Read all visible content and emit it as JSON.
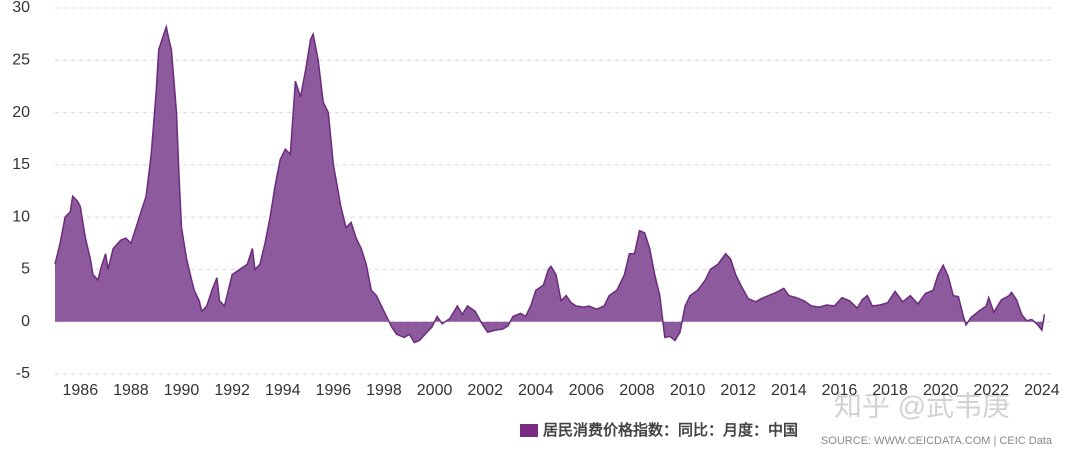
{
  "chart_data": {
    "type": "area",
    "series": [
      {
        "name": "居民消费价格指数：同比：月度：中国",
        "color": "#8e5a9e",
        "line_color": "#6a2c7c",
        "x": [
          1985.0,
          1985.2,
          1985.4,
          1985.6,
          1985.7,
          1985.9,
          1986.0,
          1986.2,
          1986.4,
          1986.5,
          1986.7,
          1986.8,
          1987.0,
          1987.1,
          1987.3,
          1987.6,
          1987.8,
          1988.0,
          1988.2,
          1988.4,
          1988.6,
          1988.8,
          1989.0,
          1989.1,
          1989.3,
          1989.4,
          1989.5,
          1989.6,
          1989.8,
          1989.9,
          1990.0,
          1990.2,
          1990.4,
          1990.5,
          1990.7,
          1990.8,
          1991.0,
          1991.2,
          1991.4,
          1991.5,
          1991.7,
          1991.9,
          1992.0,
          1992.3,
          1992.6,
          1992.8,
          1992.9,
          1993.1,
          1993.3,
          1993.5,
          1993.7,
          1993.9,
          1994.1,
          1994.3,
          1994.5,
          1994.7,
          1994.9,
          1995.1,
          1995.2,
          1995.4,
          1995.6,
          1995.8,
          1996.0,
          1996.3,
          1996.5,
          1996.7,
          1996.9,
          1997.1,
          1997.3,
          1997.5,
          1997.7,
          1997.9,
          1998.1,
          1998.3,
          1998.5,
          1998.8,
          1999.0,
          1999.2,
          1999.4,
          1999.7,
          1999.9,
          2000.1,
          2000.3,
          2000.6,
          2000.9,
          2001.1,
          2001.3,
          2001.6,
          2001.9,
          2002.1,
          2002.4,
          2002.7,
          2002.9,
          2003.1,
          2003.4,
          2003.6,
          2003.8,
          2004.0,
          2004.3,
          2004.5,
          2004.6,
          2004.8,
          2005.0,
          2005.2,
          2005.4,
          2005.6,
          2005.9,
          2006.1,
          2006.4,
          2006.7,
          2006.9,
          2007.2,
          2007.5,
          2007.7,
          2007.9,
          2008.1,
          2008.3,
          2008.5,
          2008.7,
          2008.9,
          2009.1,
          2009.3,
          2009.5,
          2009.7,
          2009.9,
          2010.1,
          2010.4,
          2010.7,
          2010.9,
          2011.2,
          2011.5,
          2011.7,
          2011.9,
          2012.1,
          2012.4,
          2012.7,
          2012.9,
          2013.2,
          2013.5,
          2013.8,
          2014.0,
          2014.3,
          2014.6,
          2014.9,
          2015.2,
          2015.5,
          2015.8,
          2016.1,
          2016.4,
          2016.7,
          2016.9,
          2017.1,
          2017.3,
          2017.6,
          2017.9,
          2018.2,
          2018.5,
          2018.8,
          2019.1,
          2019.4,
          2019.7,
          2019.9,
          2020.1,
          2020.3,
          2020.5,
          2020.7,
          2020.9,
          2021.0,
          2021.2,
          2021.5,
          2021.8,
          2021.9,
          2022.1,
          2022.4,
          2022.7,
          2022.8,
          2023.0,
          2023.2,
          2023.4,
          2023.6,
          2023.8,
          2023.9,
          2024.0,
          2024.1
        ],
        "values": [
          5.5,
          7.5,
          10,
          10.5,
          12,
          11.5,
          11,
          8,
          6,
          4.5,
          4,
          5,
          6.5,
          5,
          7,
          7.8,
          8,
          7.5,
          9,
          10.5,
          12,
          16,
          22,
          26,
          27.5,
          28.2,
          27,
          26,
          20,
          14,
          9,
          6,
          4,
          3,
          2,
          1,
          1.5,
          3,
          4.2,
          2,
          1.5,
          3.5,
          4.5,
          5,
          5.5,
          7,
          5,
          5.5,
          7.5,
          10,
          13,
          15.5,
          16.5,
          16,
          23,
          21.5,
          24,
          27,
          27.5,
          25,
          21,
          20,
          15,
          11,
          9,
          9.5,
          8,
          7,
          5.5,
          3,
          2.5,
          1.5,
          0.5,
          -0.5,
          -1.2,
          -1.5,
          -1.2,
          -2,
          -1.8,
          -1,
          -0.5,
          0.5,
          -0.2,
          0.3,
          1.5,
          0.7,
          1.5,
          1,
          -0.3,
          -1,
          -0.8,
          -0.7,
          -0.4,
          0.5,
          0.8,
          0.5,
          1.5,
          3,
          3.5,
          5,
          5.3,
          4.5,
          2,
          2.5,
          1.8,
          1.5,
          1.4,
          1.5,
          1.2,
          1.5,
          2.5,
          3,
          4.5,
          6.5,
          6.5,
          8.7,
          8.5,
          7,
          4.5,
          2.5,
          -1.5,
          -1.4,
          -1.8,
          -1,
          1.5,
          2.5,
          3,
          4,
          5,
          5.5,
          6.5,
          6,
          4.5,
          3.5,
          2.2,
          1.9,
          2.2,
          2.5,
          2.8,
          3.2,
          2.5,
          2.3,
          2,
          1.5,
          1.4,
          1.6,
          1.5,
          2.3,
          2,
          1.3,
          2.1,
          2.5,
          1.5,
          1.6,
          1.8,
          2.9,
          1.9,
          2.5,
          1.7,
          2.7,
          3,
          4.5,
          5.4,
          4.3,
          2.5,
          2.4,
          0.5,
          -0.3,
          0.4,
          1,
          1.5,
          2.3,
          0.9,
          2.1,
          2.5,
          2.8,
          2.1,
          0.7,
          0.1,
          0.2,
          -0.2,
          -0.5,
          -0.8,
          0.7
        ]
      }
    ],
    "xlim": [
      1985,
      2024.4
    ],
    "xticks": [
      1986,
      1988,
      1990,
      1992,
      1994,
      1996,
      1998,
      2000,
      2002,
      2004,
      2006,
      2008,
      2010,
      2012,
      2014,
      2016,
      2018,
      2020,
      2022,
      2024
    ],
    "ylim": [
      -5,
      30
    ],
    "yticks": [
      -5,
      0,
      5,
      10,
      15,
      20,
      25,
      30
    ],
    "grid": true,
    "legend": "bottom",
    "source": "SOURCE: WWW.CEICDATA.COM | CEIC Data",
    "watermark": "知乎 @武韦庚"
  }
}
